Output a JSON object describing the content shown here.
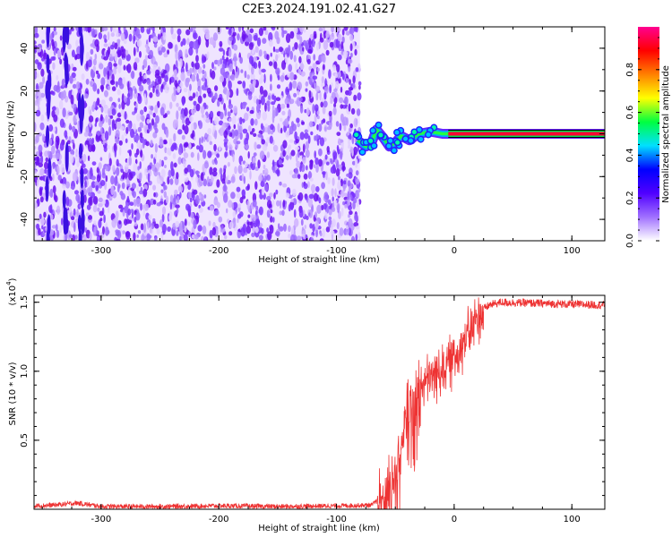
{
  "title": "C2E3.2024.191.02.41.G27",
  "chart_data": [
    {
      "type": "heatmap",
      "xlabel": "Height of straight line (km)",
      "ylabel": "Frequency (Hz)",
      "xlim": [
        -357,
        128
      ],
      "ylim": [
        -50,
        50
      ],
      "xticks": [
        -300,
        -200,
        -100,
        0,
        100
      ],
      "yticks": [
        -40,
        -20,
        0,
        20,
        40
      ],
      "noise_region_x": [
        -357,
        -80
      ],
      "signal_track": [
        {
          "x": -82,
          "y": -3
        },
        {
          "x": -75,
          "y": -6
        },
        {
          "x": -70,
          "y": -4
        },
        {
          "x": -66,
          "y": 2
        },
        {
          "x": -60,
          "y": -2
        },
        {
          "x": -55,
          "y": -6
        },
        {
          "x": -50,
          "y": -4
        },
        {
          "x": -45,
          "y": -1
        },
        {
          "x": -38,
          "y": -3
        },
        {
          "x": -30,
          "y": 0
        },
        {
          "x": -20,
          "y": 1
        },
        {
          "x": -10,
          "y": 0
        },
        {
          "x": 0,
          "y": 0
        },
        {
          "x": 128,
          "y": 0
        }
      ],
      "colorbar": {
        "label": "Normalized spectral amplitude",
        "range": [
          0,
          1
        ],
        "ticks": [
          0.0,
          0.2,
          0.4,
          0.6,
          0.8
        ],
        "colors": [
          "#ffffff",
          "#a070ff",
          "#5000ff",
          "#0000ff",
          "#00e0ff",
          "#00ff40",
          "#ffff00",
          "#ff8000",
          "#ff0000",
          "#ff0090"
        ]
      }
    },
    {
      "type": "line",
      "xlabel": "Height of straight line (km)",
      "ylabel": "SNR (10 * v/v)",
      "y_multiplier": "(x10",
      "y_multiplier_exp": "4",
      "xlim": [
        -357,
        128
      ],
      "ylim": [
        0,
        15500
      ],
      "xticks": [
        -300,
        -200,
        -100,
        0,
        100
      ],
      "yticks": [
        {
          "value": 5000,
          "label": "0.5"
        },
        {
          "value": 10000,
          "label": "1.0"
        },
        {
          "value": 15000,
          "label": "1.5"
        }
      ],
      "series": [
        {
          "color": "#ee3333",
          "points": [
            [
              -357,
              250
            ],
            [
              -340,
              300
            ],
            [
              -320,
              450
            ],
            [
              -300,
              200
            ],
            [
              -250,
              200
            ],
            [
              -200,
              250
            ],
            [
              -150,
              200
            ],
            [
              -100,
              250
            ],
            [
              -70,
              300
            ],
            [
              -60,
              1000
            ],
            [
              -50,
              3200
            ],
            [
              -45,
              5500
            ],
            [
              -40,
              7500
            ],
            [
              -35,
              8500
            ],
            [
              -30,
              9000
            ],
            [
              -20,
              9800
            ],
            [
              -10,
              10500
            ],
            [
              0,
              11300
            ],
            [
              10,
              12700
            ],
            [
              20,
              14200
            ],
            [
              30,
              14800
            ],
            [
              40,
              15000
            ],
            [
              60,
              14950
            ],
            [
              80,
              14900
            ],
            [
              100,
              14850
            ],
            [
              128,
              14800
            ]
          ]
        }
      ]
    }
  ]
}
